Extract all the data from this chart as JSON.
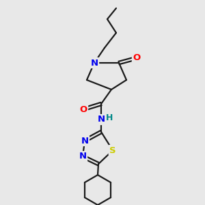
{
  "background_color": "#e8e8e8",
  "bond_color": "#1a1a1a",
  "atom_colors": {
    "N": "#0000ee",
    "O": "#ff0000",
    "S": "#cccc00",
    "H": "#008888",
    "C": "#1a1a1a"
  },
  "figsize": [
    3.0,
    3.0
  ],
  "dpi": 100
}
